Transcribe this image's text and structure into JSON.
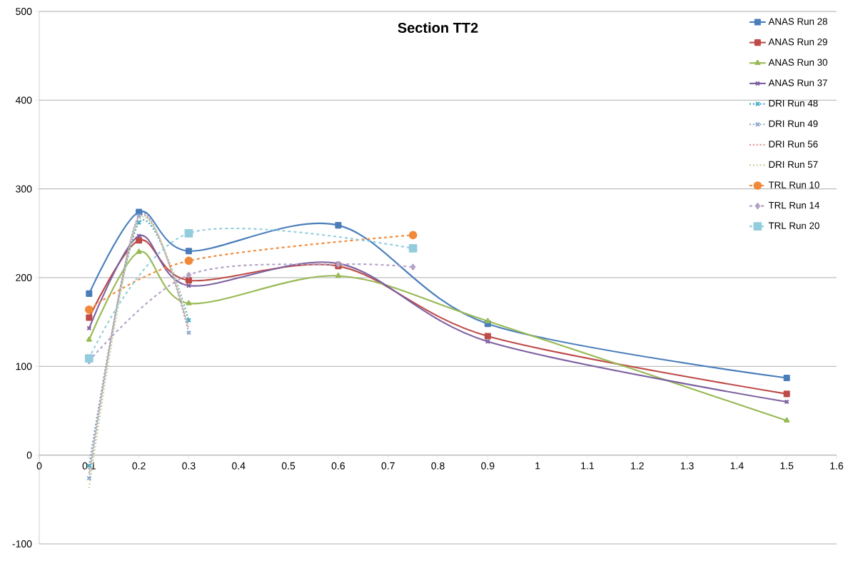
{
  "chart_data": {
    "type": "line",
    "title": "Section TT2",
    "xlim": [
      0,
      1.6
    ],
    "ylim": [
      -100,
      500
    ],
    "xticks": [
      0,
      0.1,
      0.2,
      0.3,
      0.4,
      0.5,
      0.6,
      0.7,
      0.8,
      0.9,
      1,
      1.1,
      1.2,
      1.3,
      1.4,
      1.5,
      1.6
    ],
    "yticks": [
      -100,
      0,
      100,
      200,
      300,
      400,
      500
    ],
    "grid": "y",
    "legend": "top right",
    "series": [
      {
        "name": "ANAS Run 28",
        "color": "#4a7ebb",
        "marker": "square",
        "line_style": "solid",
        "x": [
          0.1,
          0.2,
          0.3,
          0.6,
          0.9,
          1.5
        ],
        "values": [
          182,
          274,
          230,
          259,
          148,
          87
        ]
      },
      {
        "name": "ANAS Run 29",
        "color": "#be4b48",
        "marker": "square",
        "line_style": "solid",
        "x": [
          0.1,
          0.2,
          0.3,
          0.6,
          0.9,
          1.5
        ],
        "values": [
          155,
          242,
          197,
          213,
          134,
          69
        ]
      },
      {
        "name": "ANAS Run 30",
        "color": "#98b954",
        "marker": "triangle",
        "line_style": "solid",
        "x": [
          0.1,
          0.2,
          0.3,
          0.6,
          0.9,
          1.5
        ],
        "values": [
          130,
          229,
          171,
          202,
          151,
          39
        ]
      },
      {
        "name": "ANAS Run 37",
        "color": "#7d60a0",
        "marker": "cross",
        "line_style": "solid",
        "x": [
          0.1,
          0.2,
          0.3,
          0.6,
          0.9,
          1.5
        ],
        "values": [
          143,
          247,
          191,
          216,
          128,
          60
        ]
      },
      {
        "name": "DRI Run 48",
        "color": "#46aac5",
        "marker": "cross",
        "line_style": "dotted",
        "x": [
          0.1,
          0.2,
          0.3
        ],
        "values": [
          -12,
          262,
          152
        ]
      },
      {
        "name": "DRI Run 49",
        "color": "#8ea5cb",
        "marker": "cross",
        "line_style": "dotted",
        "x": [
          0.1,
          0.2,
          0.3
        ],
        "values": [
          -26,
          270,
          138
        ]
      },
      {
        "name": "DRI Run 56",
        "color": "#d99694",
        "marker": "none",
        "line_style": "dotted",
        "x": [
          0.1,
          0.2,
          0.3
        ],
        "values": [
          -20,
          268,
          142
        ]
      },
      {
        "name": "DRI Run 57",
        "color": "#c3d69b",
        "marker": "none",
        "line_style": "dotted",
        "x": [
          0.1,
          0.2,
          0.3
        ],
        "values": [
          -37,
          265,
          147
        ]
      },
      {
        "name": "TRL Run 10",
        "color": "#f08a3a",
        "marker": "circle",
        "line_style": "dashed",
        "x": [
          0.1,
          0.3,
          0.75
        ],
        "values": [
          164,
          219,
          248
        ]
      },
      {
        "name": "TRL Run 14",
        "color": "#b3a2c7",
        "marker": "diamond",
        "line_style": "dashed",
        "x": [
          0.1,
          0.3,
          0.6,
          0.75
        ],
        "values": [
          106,
          203,
          215,
          212
        ]
      },
      {
        "name": "TRL Run 20",
        "color": "#93cddd",
        "marker": "square",
        "line_style": "dashed",
        "x": [
          0.1,
          0.3,
          0.75
        ],
        "values": [
          109,
          250,
          233
        ]
      }
    ]
  }
}
